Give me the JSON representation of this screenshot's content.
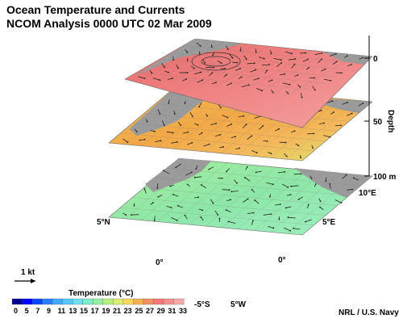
{
  "title": {
    "line1": "Ocean Temperature and Currents",
    "line2": "NCOM Analysis 0000 UTC 02 Mar 2009"
  },
  "depth_axis": {
    "label": "Depth",
    "ticks": [
      "0",
      "50",
      "100 m"
    ]
  },
  "geo_labels": {
    "lon_10E": "10°E",
    "lon_5E": "5°E",
    "lon_0_east": "0°",
    "lon_5W": "5°W",
    "lat_5N": "5°N",
    "lat_0": "0°",
    "lat_5S": "-5°S"
  },
  "vector_key": {
    "label": "1 kt"
  },
  "colorbar": {
    "title": "Temperature (°C)",
    "ticks": [
      "0",
      "5",
      "7",
      "9",
      "11",
      "13",
      "15",
      "17",
      "19",
      "21",
      "23",
      "25",
      "27",
      "29",
      "31",
      "33"
    ],
    "colors": [
      "#00008f",
      "#0000ff",
      "#0a46ff",
      "#2a7dff",
      "#40aaff",
      "#55c8ff",
      "#6ee0f0",
      "#7eecc8",
      "#94f0a0",
      "#b8f080",
      "#dcee70",
      "#f4d860",
      "#f6b050",
      "#f49060",
      "#f47878",
      "#f49090",
      "#f4a8a8"
    ]
  },
  "credit": "NRL / U.S. Navy",
  "colors": {
    "land": "#9b9b9b",
    "surface_layer": "#f08a8a",
    "mid_layer": "#f0b050",
    "bottom_layer": "#90e090",
    "arrows": "#222222"
  },
  "icons": [
    "vector-key-arrow-icon"
  ]
}
